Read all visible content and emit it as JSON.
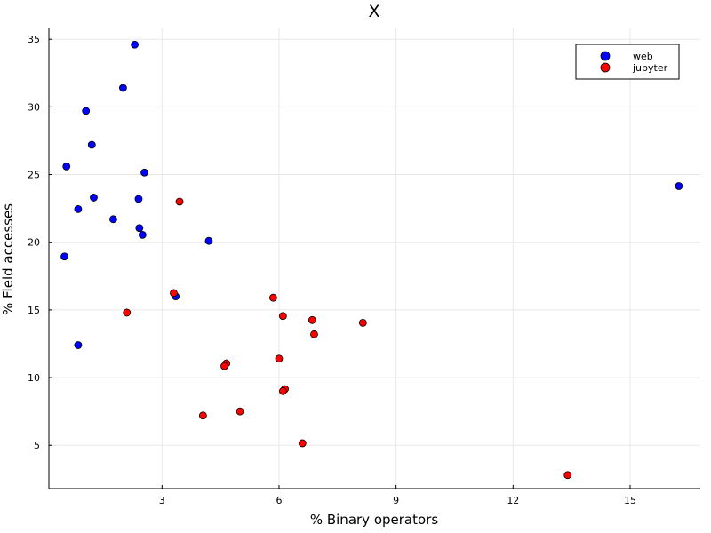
{
  "chart_data": {
    "type": "scatter",
    "title": "X",
    "xlabel": "% Binary operators",
    "ylabel": "% Field accesses",
    "xlim": [
      0.1,
      16.8
    ],
    "ylim": [
      1.8,
      35.8
    ],
    "xticks": [
      3,
      6,
      9,
      12,
      15
    ],
    "yticks": [
      5,
      10,
      15,
      20,
      25,
      30,
      35
    ],
    "grid": true,
    "legend_position": "top-right",
    "series": [
      {
        "name": "web",
        "color": "#0000ff",
        "points": [
          [
            2.3,
            34.6
          ],
          [
            2.0,
            31.4
          ],
          [
            1.05,
            29.7
          ],
          [
            1.2,
            27.2
          ],
          [
            0.55,
            25.6
          ],
          [
            2.55,
            25.15
          ],
          [
            1.25,
            23.3
          ],
          [
            2.4,
            23.2
          ],
          [
            0.85,
            22.45
          ],
          [
            1.75,
            21.7
          ],
          [
            2.42,
            21.05
          ],
          [
            2.5,
            20.55
          ],
          [
            4.2,
            20.1
          ],
          [
            0.5,
            18.95
          ],
          [
            3.35,
            16.0
          ],
          [
            0.85,
            12.4
          ],
          [
            16.25,
            24.15
          ]
        ]
      },
      {
        "name": "jupyter",
        "color": "#ff0000",
        "points": [
          [
            3.45,
            23.0
          ],
          [
            3.3,
            16.25
          ],
          [
            5.85,
            15.9
          ],
          [
            2.1,
            14.8
          ],
          [
            6.1,
            14.55
          ],
          [
            6.85,
            14.25
          ],
          [
            8.15,
            14.05
          ],
          [
            6.9,
            13.2
          ],
          [
            6.0,
            11.4
          ],
          [
            4.65,
            11.05
          ],
          [
            4.6,
            10.85
          ],
          [
            6.15,
            9.15
          ],
          [
            6.1,
            9.0
          ],
          [
            5.0,
            7.5
          ],
          [
            4.05,
            7.2
          ],
          [
            6.6,
            5.15
          ],
          [
            13.4,
            2.8
          ]
        ]
      }
    ]
  }
}
